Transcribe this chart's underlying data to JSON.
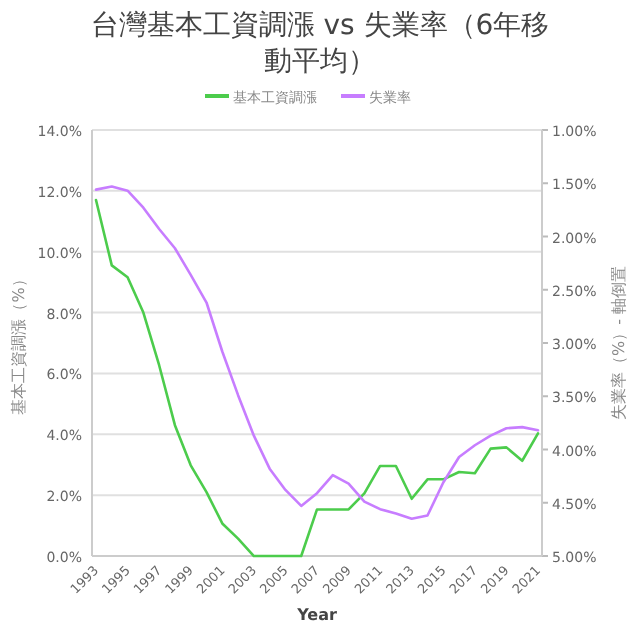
{
  "chart_data": {
    "type": "line",
    "title": "台灣基本工資調漲 vs 失業率（6年移動平均）",
    "xlabel": "Year",
    "ylabel": "基本工資調漲（%）",
    "y2label": "失業率（%）- 軸倒置",
    "categories": [
      "1993",
      null,
      "1995",
      null,
      "1997",
      null,
      "1999",
      null,
      "2001",
      null,
      "2003",
      null,
      "2005",
      null,
      "2007",
      null,
      "2009",
      null,
      "2011",
      null,
      "2013",
      null,
      "2015",
      null,
      "2017",
      null,
      "2019",
      null,
      "2021"
    ],
    "series": [
      {
        "name": "基本工資調漲",
        "color": "#4ccc4c",
        "values": [
          11.7,
          9.55,
          9.16,
          8.0,
          6.27,
          4.3,
          2.98,
          2.1,
          1.07,
          0.57,
          0,
          0,
          0,
          0,
          1.53,
          1.53,
          1.53,
          2.06,
          2.96,
          2.96,
          1.88,
          2.52,
          2.52,
          2.76,
          2.72,
          3.53,
          3.57,
          3.13,
          4.03
        ]
      },
      {
        "name": "失業率",
        "color": "#c77dff",
        "axis": "y2",
        "values": [
          1.56,
          1.53,
          1.57,
          1.73,
          1.93,
          2.11,
          2.36,
          2.62,
          3.08,
          3.49,
          3.87,
          4.18,
          4.38,
          4.53,
          4.41,
          4.24,
          4.32,
          4.49,
          4.56,
          4.6,
          4.65,
          4.62,
          4.31,
          4.07,
          3.96,
          3.87,
          3.8,
          3.79,
          3.82
        ]
      }
    ],
    "ylim": [
      0,
      14
    ],
    "yticks": [
      {
        "value": 0,
        "label": "0.0%"
      },
      {
        "value": 2,
        "label": "2.0%"
      },
      {
        "value": 4,
        "label": "4.0%"
      },
      {
        "value": 6,
        "label": "6.0%"
      },
      {
        "value": 8,
        "label": "8.0%"
      },
      {
        "value": 10,
        "label": "10.0%"
      },
      {
        "value": 12,
        "label": "12.0%"
      },
      {
        "value": 14,
        "label": "14.0%"
      }
    ],
    "y2lim": [
      5,
      1
    ],
    "y2ticks": [
      {
        "value": 1,
        "label": "1.00%"
      },
      {
        "value": 1.5,
        "label": "1.50%"
      },
      {
        "value": 2,
        "label": "2.00%"
      },
      {
        "value": 2.5,
        "label": "2.50%"
      },
      {
        "value": 3,
        "label": "3.00%"
      },
      {
        "value": 3.5,
        "label": "3.50%"
      },
      {
        "value": 4,
        "label": "4.00%"
      },
      {
        "value": 4.5,
        "label": "4.50%"
      },
      {
        "value": 5,
        "label": "5.00%"
      }
    ],
    "grid": "y",
    "legend": "top",
    "marker": "none",
    "line_style": "solid"
  }
}
